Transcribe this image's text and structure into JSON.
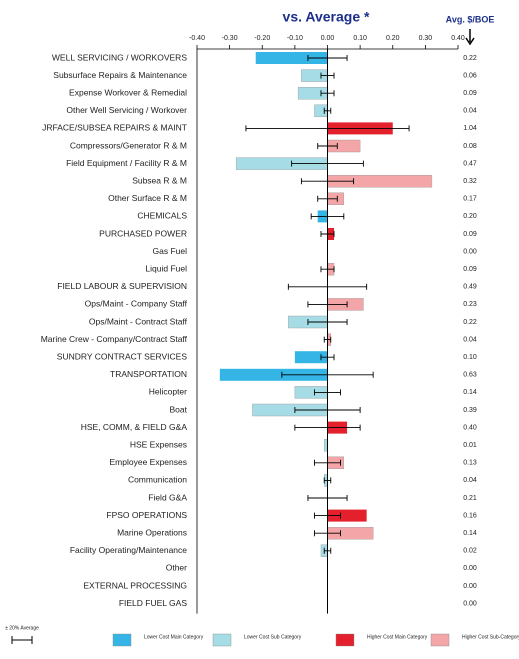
{
  "chart_data": {
    "type": "bar",
    "orientation": "horizontal",
    "title": "vs. Average *",
    "avg_header": "Avg. $/BOE",
    "categories": [
      "WELL SERVICING / WORKOVERS",
      "Subsurface Repairs & Maintenance",
      "Expense Workover & Remedial",
      "Other Well Servicing / Workover",
      "JRFACE/SUBSEA REPAIRS & MAINT",
      "Compressors/Generator R & M",
      "Field Equipment / Facility R & M",
      "Subsea R & M",
      "Other Surface R & M",
      "CHEMICALS",
      "PURCHASED POWER",
      "Gas Fuel",
      "Liquid Fuel",
      "FIELD LABOUR & SUPERVISION",
      "Ops/Maint - Company Staff",
      "Ops/Maint - Contract Staff",
      "Marine Crew - Company/Contract Staff",
      "SUNDRY CONTRACT SERVICES",
      "TRANSPORTATION",
      "Helicopter",
      "Boat",
      "HSE, COMM, & FIELD G&A",
      "HSE Expenses",
      "Employee Expenses",
      "Communication",
      "Field G&A",
      "FPSO OPERATIONS",
      "Marine Operations",
      "Facility Operating/Maintenance",
      "Other",
      "EXTERNAL PROCESSING",
      "FIELD FUEL GAS"
    ],
    "values": [
      -0.22,
      -0.08,
      -0.09,
      -0.04,
      0.2,
      0.1,
      -0.28,
      0.32,
      0.05,
      -0.03,
      0.02,
      0,
      0.02,
      0,
      0.11,
      -0.12,
      0.01,
      -0.1,
      -0.33,
      -0.1,
      -0.23,
      0.06,
      -0.01,
      0.05,
      -0.01,
      0,
      0.12,
      0.14,
      -0.02,
      0,
      0,
      0
    ],
    "errors": [
      0.06,
      0.02,
      0.02,
      0.01,
      0.25,
      0.03,
      0.11,
      0.08,
      0.03,
      0.05,
      0.02,
      0,
      0.02,
      0.12,
      0.06,
      0.06,
      0.01,
      0.02,
      0.14,
      0.04,
      0.1,
      0.1,
      0,
      0.04,
      0.01,
      0.06,
      0.04,
      0.04,
      0.01,
      0,
      0,
      0
    ],
    "colors": [
      "#35b5e5",
      "#a6dce6",
      "#a6dce6",
      "#a6dce6",
      "#e3202b",
      "#f4a5a8",
      "#a6dce6",
      "#f4a5a8",
      "#f4a5a8",
      "#35b5e5",
      "#e3202b",
      "#f4a5a8",
      "#f4a5a8",
      "#e3202b",
      "#f4a5a8",
      "#a6dce6",
      "#f4a5a8",
      "#35b5e5",
      "#35b5e5",
      "#a6dce6",
      "#a6dce6",
      "#e3202b",
      "#a6dce6",
      "#f4a5a8",
      "#a6dce6",
      "#a6dce6",
      "#e3202b",
      "#f4a5a8",
      "#a6dce6",
      "#a6dce6",
      "#35b5e5",
      "#35b5e5"
    ],
    "avg_values": [
      0.22,
      0.06,
      0.09,
      0.04,
      1.04,
      0.08,
      0.47,
      0.32,
      0.17,
      0.2,
      0.09,
      0,
      0.09,
      0.49,
      0.23,
      0.22,
      0.04,
      0.1,
      0.63,
      0.14,
      0.39,
      0.4,
      0.01,
      0.13,
      0.04,
      0.21,
      0.16,
      0.14,
      0.02,
      0,
      0,
      0
    ],
    "avg_value_labels": [
      "0.22",
      "0.06",
      "0.09",
      "0.04",
      "1.04",
      "0.08",
      "0.47",
      "0.32",
      "0.17",
      "0.20",
      "0.09",
      "0.00",
      "0.09",
      "0.49",
      "0.23",
      "0.22",
      "0.04",
      "0.10",
      "0.63",
      "0.14",
      "0.39",
      "0.40",
      "0.01",
      "0.13",
      "0.04",
      "0.21",
      "0.16",
      "0.14",
      "0.02",
      "0.00",
      "0.00",
      "0.00"
    ],
    "xlim": [
      -0.4,
      0.4
    ],
    "xticks": [
      {
        "value": -0.4,
        "label": "-0.40"
      },
      {
        "value": -0.3,
        "label": "-0.30"
      },
      {
        "value": -0.2,
        "label": "-0.20"
      },
      {
        "value": -0.1,
        "label": "-0.10"
      },
      {
        "value": 0,
        "label": "0.00"
      },
      {
        "value": 0.1,
        "label": "0.10"
      },
      {
        "value": 0.2,
        "label": "0.20"
      },
      {
        "value": 0.3,
        "label": "0.30"
      },
      {
        "value": 0.4,
        "label": "0.40"
      }
    ],
    "legend": [
      {
        "name": "± 20% Average",
        "kind": "errorbar"
      },
      {
        "name": "Lower Cost Main Category",
        "color": "#35b5e5"
      },
      {
        "name": "Lower Cost Sub Category",
        "color": "#a6dce6"
      },
      {
        "name": "Higher Cost Main Category",
        "color": "#e3202b"
      },
      {
        "name": "Higher Cost Sub-Category",
        "color": "#f4a5a8"
      }
    ]
  }
}
